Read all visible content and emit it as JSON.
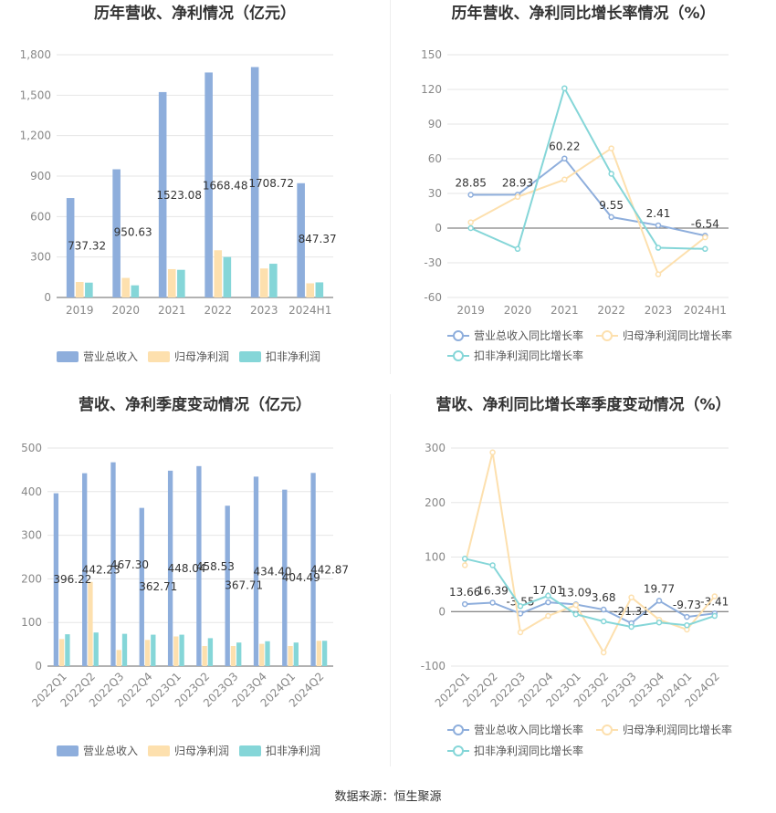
{
  "source": "数据来源：恒生聚源",
  "colors": {
    "revenue": "#8eaedc",
    "net": "#fde0ae",
    "deducted": "#85d6d8",
    "revenue_line": "#8eaedc",
    "net_line": "#fde0ae",
    "deducted_line": "#85d6d8"
  },
  "chart_data": [
    {
      "id": "annual-bar",
      "type": "bar",
      "title": "历年营收、净利情况（亿元）",
      "categories": [
        "2019",
        "2020",
        "2021",
        "2022",
        "2023",
        "2024H1"
      ],
      "ylim": [
        0,
        1800
      ],
      "yticks": [
        "0",
        "300",
        "600",
        "900",
        "1,200",
        "1,500",
        "1,800"
      ],
      "series": [
        {
          "name": "营业总收入",
          "values": [
            737.32,
            950.63,
            1523.08,
            1668.48,
            1708.72,
            847.37
          ],
          "labels": [
            "737.32",
            "950.63",
            "1523.08",
            "1668.48",
            "1708.72",
            "847.37"
          ]
        },
        {
          "name": "归母净利润",
          "values": [
            115,
            145,
            210,
            350,
            215,
            105
          ]
        },
        {
          "name": "扣非净利润",
          "values": [
            110,
            90,
            205,
            300,
            250,
            112
          ]
        }
      ],
      "legend": "bottom"
    },
    {
      "id": "annual-line",
      "type": "line",
      "title": "历年营收、净利同比增长率情况（%）",
      "categories": [
        "2019",
        "2020",
        "2021",
        "2022",
        "2023",
        "2024H1"
      ],
      "ylim": [
        -60,
        150
      ],
      "yticks": [
        "-60",
        "-30",
        "0",
        "30",
        "60",
        "90",
        "120",
        "150"
      ],
      "series": [
        {
          "name": "营业总收入同比增长率",
          "values": [
            28.85,
            28.93,
            60.22,
            9.55,
            2.41,
            -6.54
          ],
          "labels": [
            "28.85",
            "28.93",
            "60.22",
            "9.55",
            "2.41",
            "-6.54"
          ]
        },
        {
          "name": "归母净利润同比增长率",
          "values": [
            5,
            27,
            42,
            69,
            -40,
            -8
          ]
        },
        {
          "name": "扣非净利润同比增长率",
          "values": [
            0,
            -18,
            121,
            47,
            -17,
            -18
          ]
        }
      ],
      "legend": "bottom"
    },
    {
      "id": "quarter-bar",
      "type": "bar",
      "title": "营收、净利季度变动情况（亿元）",
      "categories": [
        "2022Q1",
        "2022Q2",
        "2022Q3",
        "2022Q4",
        "2023Q1",
        "2023Q2",
        "2023Q3",
        "2023Q4",
        "2024Q1",
        "2024Q2"
      ],
      "ylim": [
        0,
        500
      ],
      "yticks": [
        "0",
        "100",
        "200",
        "300",
        "400",
        "500"
      ],
      "series": [
        {
          "name": "营业总收入",
          "values": [
            396.22,
            442.23,
            467.3,
            362.71,
            448.04,
            458.53,
            367.71,
            434.4,
            404.49,
            442.87
          ],
          "labels": [
            "396.22",
            "442.23",
            "467.30",
            "362.71",
            "448.04",
            "458.53",
            "367.71",
            "434.40",
            "404.49",
            "442.87"
          ]
        },
        {
          "name": "归母净利润",
          "values": [
            62,
            193,
            37,
            60,
            68,
            46,
            46,
            51,
            46,
            58
          ]
        },
        {
          "name": "扣非净利润",
          "values": [
            73,
            77,
            74,
            72,
            72,
            64,
            54,
            57,
            54,
            58
          ]
        }
      ],
      "legend": "bottom"
    },
    {
      "id": "quarter-line",
      "type": "line",
      "title": "营收、净利同比增长率季度变动情况（%）",
      "categories": [
        "2022Q1",
        "2022Q2",
        "2022Q3",
        "2022Q4",
        "2023Q1",
        "2023Q2",
        "2023Q3",
        "2023Q4",
        "2024Q1",
        "2024Q2"
      ],
      "ylim": [
        -100,
        300
      ],
      "yticks": [
        "-100",
        "0",
        "100",
        "200",
        "300"
      ],
      "series": [
        {
          "name": "营业总收入同比增长率",
          "values": [
            13.66,
            16.39,
            -3.55,
            17.01,
            13.09,
            3.68,
            -21.31,
            19.77,
            -9.73,
            -3.41
          ],
          "labels": [
            "13.66",
            "16.39",
            "-3.55",
            "17.01",
            "13.09",
            "3.68",
            "-21.31",
            "19.77",
            "-9.73",
            "-3.41"
          ]
        },
        {
          "name": "归母净利润同比增长率",
          "values": [
            85,
            292,
            -38,
            -8,
            12,
            -75,
            26,
            -15,
            -33,
            28
          ]
        },
        {
          "name": "扣非净利润同比增长率",
          "values": [
            97,
            85,
            10,
            29,
            -5,
            -18,
            -28,
            -20,
            -25,
            -8
          ]
        }
      ],
      "legend": "bottom"
    }
  ]
}
